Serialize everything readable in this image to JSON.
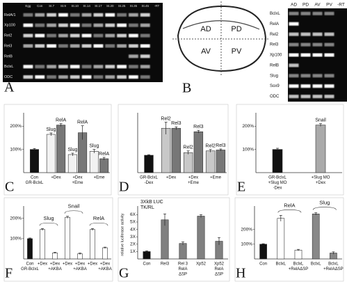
{
  "gels": [
    {
      "panel": "A",
      "lanes": [
        "Egg",
        "Con",
        "St.7",
        "St.9",
        "St.10",
        "St.14",
        "St.17",
        "St.20",
        "St.25",
        "St.35",
        "St.45",
        "-RT"
      ],
      "rows": [
        "RelA/1",
        "Xp100",
        "Rel2",
        "Rel3",
        "RelB",
        "BclxL",
        "ODC"
      ]
    },
    {
      "lanes": [
        "AD",
        "PD",
        "AV",
        "PV",
        "-RT"
      ],
      "rows": [
        "BclxL",
        "RelA",
        "Rel2",
        "Rel3",
        "Xp100",
        "RelB",
        "Slug",
        "Sox9",
        "ODC"
      ]
    }
  ],
  "diagram": {
    "panel": "B",
    "regions": [
      "AD",
      "PD",
      "AV",
      "PV"
    ]
  },
  "chart_data": [
    {
      "type": "bar",
      "panel": "C",
      "name_position": "each",
      "categories": [
        [
          "Con",
          "GR-BclxL"
        ],
        [
          "+Dex"
        ],
        [
          "+Dex",
          "+Eme"
        ],
        [
          "+Eme"
        ]
      ],
      "series": [
        {
          "color": "#111111",
          "values": [
            100,
            null,
            null,
            null
          ],
          "errors": [
            4,
            null,
            null,
            null
          ]
        },
        {
          "name": "Slug",
          "color": "#f2f2f2",
          "values": [
            null,
            165,
            78,
            92
          ],
          "errors": [
            null,
            6,
            6,
            8
          ]
        },
        {
          "name": "RelA",
          "color": "#777777",
          "values": [
            null,
            205,
            172,
            60
          ],
          "errors": [
            null,
            6,
            30,
            6
          ]
        }
      ],
      "ylim": [
        0,
        240
      ],
      "yticks": [
        {
          "value": 100,
          "label": "100%"
        },
        {
          "value": 200,
          "label": "200%"
        }
      ]
    },
    {
      "type": "bar",
      "panel": "D",
      "name_position": "each",
      "categories": [
        [
          "GR-BclxL",
          "-Dex"
        ],
        [
          "+Dex"
        ],
        [
          "+Dex",
          "+Eme"
        ],
        [
          "+Eme"
        ]
      ],
      "series": [
        {
          "color": "#111111",
          "values": [
            100,
            null,
            null,
            null
          ],
          "errors": [
            3,
            null,
            null,
            null
          ]
        },
        {
          "name": "Rel2",
          "color": "#c8c8c8",
          "values": [
            null,
            255,
            115,
            125
          ],
          "errors": [
            null,
            35,
            10,
            8
          ]
        },
        {
          "name": "Rel3",
          "color": "#777777",
          "values": [
            null,
            255,
            235,
            130
          ],
          "errors": [
            null,
            8,
            8,
            6
          ]
        }
      ],
      "ylim": [
        0,
        320
      ],
      "yticks": []
    },
    {
      "type": "bar",
      "panel": "E",
      "name_position": "each",
      "categories": [
        [
          "GR-BclxL",
          "+Slug MO",
          "-Dex"
        ],
        [
          "+Slug MO",
          "+Dex"
        ]
      ],
      "series": [
        {
          "color": "#111111",
          "values": [
            100,
            null
          ],
          "errors": [
            5,
            null
          ]
        },
        {
          "name": "Snail",
          "color": "#aaaaaa",
          "values": [
            null,
            205
          ],
          "errors": [
            null,
            6
          ]
        }
      ],
      "ylim": [
        0,
        240
      ],
      "yticks": [
        {
          "value": 100,
          "label": "100%"
        },
        {
          "value": 200,
          "label": "200%"
        }
      ]
    },
    {
      "type": "bar",
      "panel": "F",
      "name_position": "span",
      "categories": [
        [
          "Con",
          "GR-BclxL"
        ],
        [
          "+Dex"
        ],
        [
          "+Dex",
          "+AKBA"
        ],
        [
          "+Dex"
        ],
        [
          "+Dex",
          "+AKBA"
        ],
        [
          "+Dex"
        ],
        [
          "+Dex",
          "+AKBA"
        ]
      ],
      "series": [
        {
          "color": "#111111",
          "values": [
            100,
            null,
            null,
            null,
            null,
            null,
            null
          ],
          "errors": [
            3,
            null,
            null,
            null,
            null,
            null,
            null
          ]
        },
        {
          "name": "Slug",
          "color": "#ffffff",
          "values": [
            null,
            145,
            30,
            null,
            null,
            null,
            null
          ],
          "errors": [
            null,
            5,
            3,
            null,
            null,
            null,
            null
          ]
        },
        {
          "name": "Snail",
          "color": "#ffffff",
          "values": [
            null,
            null,
            null,
            205,
            25,
            null,
            null
          ],
          "errors": [
            null,
            null,
            null,
            5,
            4,
            null,
            null
          ]
        },
        {
          "name": "RelA",
          "color": "#ffffff",
          "values": [
            null,
            null,
            null,
            null,
            null,
            145,
            55
          ],
          "errors": [
            null,
            null,
            null,
            null,
            null,
            5,
            3
          ]
        }
      ],
      "ylim": [
        0,
        240
      ],
      "yticks": [
        {
          "value": 100,
          "label": "100%"
        },
        {
          "value": 200,
          "label": "200%"
        }
      ]
    },
    {
      "type": "bar",
      "panel": "G",
      "title": [
        "3XkB LUC",
        "TK/RL"
      ],
      "ylabel": "relative luciferase activity",
      "name_position": "each",
      "categories": [
        [
          "Con"
        ],
        [
          "Rel3"
        ],
        [
          "Rel 3",
          "RelA",
          "ΔSP"
        ],
        [
          "Xp52"
        ],
        [
          "Xp52",
          "RelA",
          "ΔSP"
        ]
      ],
      "series": [
        {
          "color": "#111111",
          "values": [
            1,
            null,
            null,
            null,
            null
          ],
          "errors": [
            0.1,
            null,
            null,
            null,
            null
          ]
        },
        {
          "color": "#808080",
          "values": [
            null,
            5.3,
            2.1,
            5.8,
            2.4
          ],
          "errors": [
            null,
            0.8,
            0.2,
            0.2,
            0.5
          ]
        }
      ],
      "ylim": [
        0,
        6.6
      ],
      "yticks": [
        {
          "value": 1,
          "label": "1X"
        },
        {
          "value": 2,
          "label": "2X"
        },
        {
          "value": 3,
          "label": "3X"
        },
        {
          "value": 4,
          "label": "4X"
        },
        {
          "value": 5,
          "label": "5X"
        },
        {
          "value": 6,
          "label": "6X"
        }
      ]
    },
    {
      "type": "bar",
      "panel": "H",
      "name_position": "span",
      "categories": [
        [
          "Con"
        ],
        [
          "BclxL"
        ],
        [
          "BclxL",
          "+RelAΔSP"
        ],
        [
          "BclxL"
        ],
        [
          "BclxL",
          "+RelAΔSP"
        ]
      ],
      "series": [
        {
          "color": "#111111",
          "values": [
            100,
            null,
            null,
            null,
            null
          ],
          "errors": [
            3,
            null,
            null,
            null,
            null
          ]
        },
        {
          "name": "RelA",
          "color": "#ffffff",
          "values": [
            null,
            275,
            60,
            null,
            null
          ],
          "errors": [
            null,
            20,
            5,
            null,
            null
          ]
        },
        {
          "name": "Slug",
          "color": "#888888",
          "values": [
            null,
            null,
            null,
            305,
            40
          ],
          "errors": [
            null,
            null,
            null,
            8,
            8
          ]
        }
      ],
      "ylim": [
        0,
        330
      ],
      "yticks": [
        {
          "value": 100,
          "label": "100%"
        },
        {
          "value": 200,
          "label": "200%"
        }
      ]
    }
  ]
}
